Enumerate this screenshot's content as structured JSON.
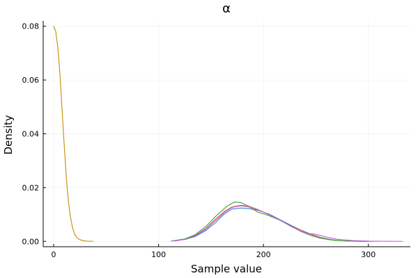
{
  "chart_data": {
    "type": "line",
    "title": "α",
    "xlabel": "Sample value",
    "ylabel": "Density",
    "xlim": [
      -10,
      340
    ],
    "ylim": [
      -0.002,
      0.082
    ],
    "xticks": [
      0,
      100,
      200,
      300
    ],
    "xtick_labels": [
      "0",
      "100",
      "200",
      "300"
    ],
    "yticks": [
      0.0,
      0.02,
      0.04,
      0.06,
      0.08
    ],
    "ytick_labels": [
      "0.00",
      "0.02",
      "0.04",
      "0.06",
      "0.08"
    ],
    "grid": true,
    "legend": "none",
    "series": [
      {
        "color": "#c38b00",
        "x": [
          0,
          2,
          4,
          6,
          8,
          10,
          12,
          14,
          16,
          18,
          20,
          22,
          25,
          28,
          31,
          34,
          38
        ],
        "y": [
          0.08,
          0.078,
          0.072,
          0.062,
          0.049,
          0.036,
          0.024,
          0.015,
          0.009,
          0.005,
          0.0027,
          0.0014,
          0.0006,
          0.00025,
          0.0001,
          4e-05,
          0.0
        ]
      },
      {
        "color": "#3a7de3",
        "x": [
          112,
          125,
          135,
          145,
          155,
          162,
          170,
          178,
          186,
          195,
          205,
          215,
          225,
          235,
          245,
          255,
          265,
          275,
          290,
          305
        ],
        "y": [
          0.0001,
          0.0007,
          0.0018,
          0.004,
          0.0072,
          0.01,
          0.012,
          0.0124,
          0.0122,
          0.0115,
          0.0102,
          0.0082,
          0.0062,
          0.0043,
          0.0027,
          0.0014,
          0.0006,
          0.0002,
          5e-05,
          0.0
        ]
      },
      {
        "color": "#e2584a",
        "x": [
          115,
          125,
          135,
          145,
          155,
          163,
          170,
          178,
          186,
          195,
          205,
          215,
          225,
          235,
          245,
          255,
          265,
          275,
          290,
          310
        ],
        "y": [
          0.0001,
          0.0008,
          0.0022,
          0.0048,
          0.0085,
          0.0112,
          0.0128,
          0.0134,
          0.0131,
          0.0118,
          0.01,
          0.008,
          0.006,
          0.0042,
          0.0026,
          0.0013,
          0.0005,
          0.0002,
          5e-05,
          0.0
        ]
      },
      {
        "color": "#2ea02e",
        "x": [
          112,
          125,
          135,
          145,
          155,
          165,
          172,
          178,
          185,
          195,
          205,
          215,
          225,
          235,
          245,
          255,
          265,
          280,
          300
        ],
        "y": [
          0.0001,
          0.0009,
          0.0025,
          0.0055,
          0.0095,
          0.013,
          0.0146,
          0.0145,
          0.0132,
          0.0108,
          0.0096,
          0.008,
          0.006,
          0.0038,
          0.0022,
          0.0011,
          0.0005,
          0.0001,
          0.0
        ]
      },
      {
        "color": "#b866d6",
        "x": [
          112,
          125,
          135,
          145,
          155,
          163,
          170,
          178,
          186,
          195,
          205,
          215,
          225,
          235,
          242,
          250,
          260,
          270,
          285,
          300,
          320,
          333
        ],
        "y": [
          0.0001,
          0.0007,
          0.002,
          0.0045,
          0.008,
          0.0108,
          0.0126,
          0.0132,
          0.0128,
          0.0116,
          0.01,
          0.008,
          0.0058,
          0.0038,
          0.003,
          0.0026,
          0.0016,
          0.0008,
          0.0003,
          0.0001,
          2e-05,
          0.0
        ]
      }
    ]
  }
}
